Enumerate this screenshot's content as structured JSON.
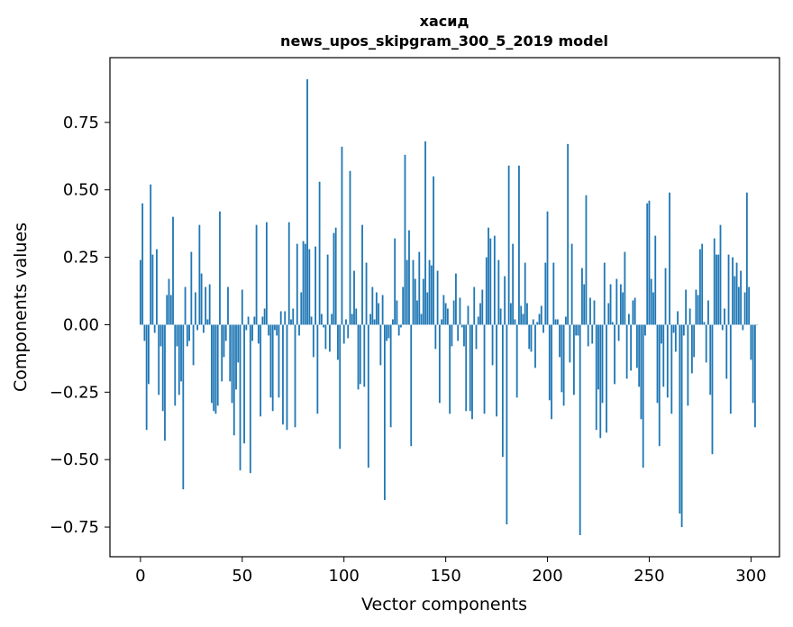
{
  "chart_data": {
    "type": "bar",
    "title": "хасид",
    "subtitle": "news_upos_skipgram_300_5_2019 model",
    "xlabel": "Vector components",
    "ylabel": "Components values",
    "xlim": [
      -15,
      314
    ],
    "ylim": [
      -0.86,
      0.99
    ],
    "xticks": [
      0,
      50,
      100,
      150,
      200,
      250,
      300
    ],
    "xtick_labels": [
      "0",
      "50",
      "100",
      "150",
      "200",
      "250",
      "300"
    ],
    "yticks": [
      -0.75,
      -0.5,
      -0.25,
      0.0,
      0.25,
      0.5,
      0.75
    ],
    "ytick_labels": [
      "−0.75",
      "−0.50",
      "−0.25",
      "0.00",
      "0.25",
      "0.50",
      "0.75"
    ],
    "grid": false,
    "bar_color": "#1f77b4",
    "values": [
      0.24,
      0.45,
      -0.06,
      -0.39,
      -0.22,
      0.52,
      0.26,
      -0.03,
      0.28,
      -0.26,
      -0.08,
      -0.32,
      -0.43,
      0.11,
      0.17,
      0.11,
      0.4,
      -0.3,
      -0.08,
      -0.26,
      -0.21,
      -0.61,
      0.14,
      -0.08,
      -0.06,
      0.27,
      -0.15,
      0.12,
      -0.02,
      0.37,
      0.19,
      -0.03,
      0.14,
      0.02,
      0.15,
      -0.29,
      -0.32,
      -0.33,
      -0.3,
      0.42,
      -0.21,
      -0.12,
      -0.06,
      0.14,
      -0.21,
      -0.29,
      -0.41,
      -0.24,
      -0.14,
      -0.54,
      0.13,
      -0.44,
      -0.02,
      0.03,
      -0.55,
      -0.06,
      0.03,
      0.37,
      -0.07,
      -0.34,
      0.03,
      0.06,
      0.38,
      -0.04,
      -0.27,
      -0.32,
      -0.02,
      -0.04,
      -0.27,
      0.05,
      -0.37,
      0.05,
      -0.39,
      0.38,
      0.02,
      0.06,
      -0.38,
      0.3,
      -0.04,
      0.12,
      0.31,
      0.3,
      0.91,
      0.28,
      0.03,
      -0.12,
      0.29,
      -0.33,
      0.53,
      0.04,
      -0.01,
      -0.09,
      0.26,
      -0.1,
      0.04,
      0.34,
      0.36,
      -0.13,
      -0.46,
      0.66,
      -0.07,
      0.02,
      -0.05,
      0.57,
      0.04,
      0.2,
      0.06,
      -0.24,
      -0.22,
      0.37,
      -0.23,
      0.23,
      -0.53,
      0.04,
      0.14,
      0.02,
      0.12,
      0.08,
      -0.15,
      0.11,
      -0.65,
      -0.06,
      -0.05,
      -0.38,
      0.02,
      0.32,
      0.09,
      -0.04,
      -0.01,
      0.14,
      0.63,
      0.24,
      0.35,
      -0.45,
      0.24,
      0.17,
      0.09,
      0.27,
      0.04,
      0.17,
      0.68,
      0.12,
      0.24,
      0.22,
      0.55,
      -0.09,
      0.2,
      -0.29,
      0.02,
      0.11,
      0.08,
      0.06,
      -0.33,
      -0.08,
      0.09,
      0.19,
      -0.06,
      0.1,
      -0.01,
      -0.08,
      -0.32,
      0.07,
      -0.32,
      -0.35,
      0.14,
      -0.09,
      0.03,
      0.08,
      0.13,
      -0.33,
      0.25,
      0.36,
      0.32,
      -0.15,
      0.33,
      -0.34,
      0.24,
      0.06,
      -0.49,
      0.18,
      -0.74,
      0.59,
      0.08,
      0.3,
      0.02,
      -0.27,
      0.59,
      0.07,
      0.04,
      0.23,
      0.08,
      -0.09,
      -0.1,
      0.02,
      -0.16,
      0.01,
      0.04,
      0.07,
      -0.03,
      0.23,
      0.42,
      -0.28,
      -0.35,
      0.23,
      0.02,
      0.02,
      -0.12,
      -0.25,
      -0.3,
      0.03,
      0.67,
      -0.14,
      0.3,
      -0.26,
      -0.04,
      -0.04,
      -0.78,
      0.21,
      0.15,
      0.48,
      -0.08,
      0.1,
      -0.07,
      0.09,
      -0.39,
      -0.24,
      -0.42,
      -0.29,
      0.23,
      -0.4,
      0.08,
      0.15,
      0.01,
      -0.22,
      0.17,
      -0.06,
      0.15,
      0.12,
      0.27,
      -0.2,
      0.04,
      -0.17,
      0.09,
      0.1,
      -0.16,
      -0.23,
      -0.35,
      -0.53,
      -0.04,
      0.45,
      0.46,
      0.17,
      0.12,
      0.33,
      -0.29,
      -0.45,
      -0.07,
      -0.23,
      0.21,
      -0.27,
      0.49,
      -0.33,
      -0.03,
      -0.1,
      0.05,
      -0.7,
      -0.75,
      -0.04,
      0.13,
      -0.3,
      0.06,
      -0.18,
      -0.12,
      0.13,
      0.11,
      0.28,
      0.3,
      0.01,
      -0.14,
      0.09,
      -0.26,
      -0.48,
      0.32,
      0.26,
      0.26,
      0.37,
      -0.02,
      0.06,
      -0.2,
      0.26,
      -0.33,
      0.25,
      0.18,
      0.23,
      0.14,
      0.2,
      -0.02,
      0.12,
      0.49,
      0.14,
      -0.13,
      -0.29,
      -0.38,
      0.0
    ]
  }
}
